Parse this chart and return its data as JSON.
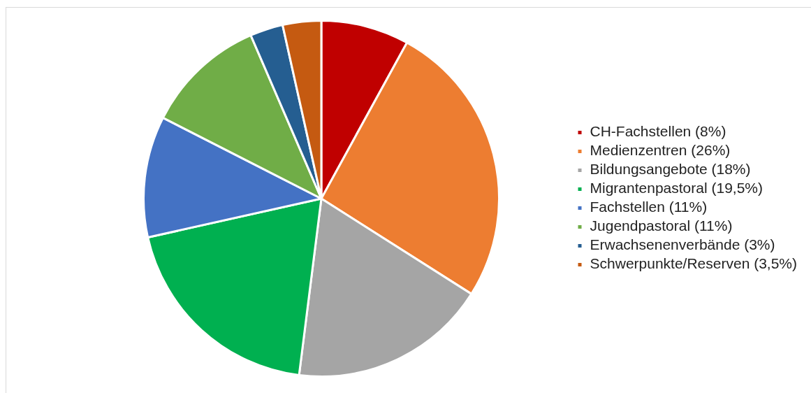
{
  "chart_data": {
    "type": "pie",
    "categories": [
      "CH-Fachstellen (8%)",
      "Medienzentren (26%)",
      "Bildungsangebote (18%)",
      "Migrantenpastoral (19,5%)",
      "Fachstellen (11%)",
      "Jugendpastoral (11%)",
      "Erwachsenenverbände (3%)",
      "Schwerpunkte/Reserven (3,5%)"
    ],
    "values": [
      8,
      26,
      18,
      19.5,
      11,
      11,
      3,
      3.5
    ],
    "colors": [
      "#c00000",
      "#ed7d31",
      "#a5a5a5",
      "#00b050",
      "#4472c4",
      "#70ad47",
      "#255e91",
      "#c55a11"
    ],
    "legend": "right"
  }
}
